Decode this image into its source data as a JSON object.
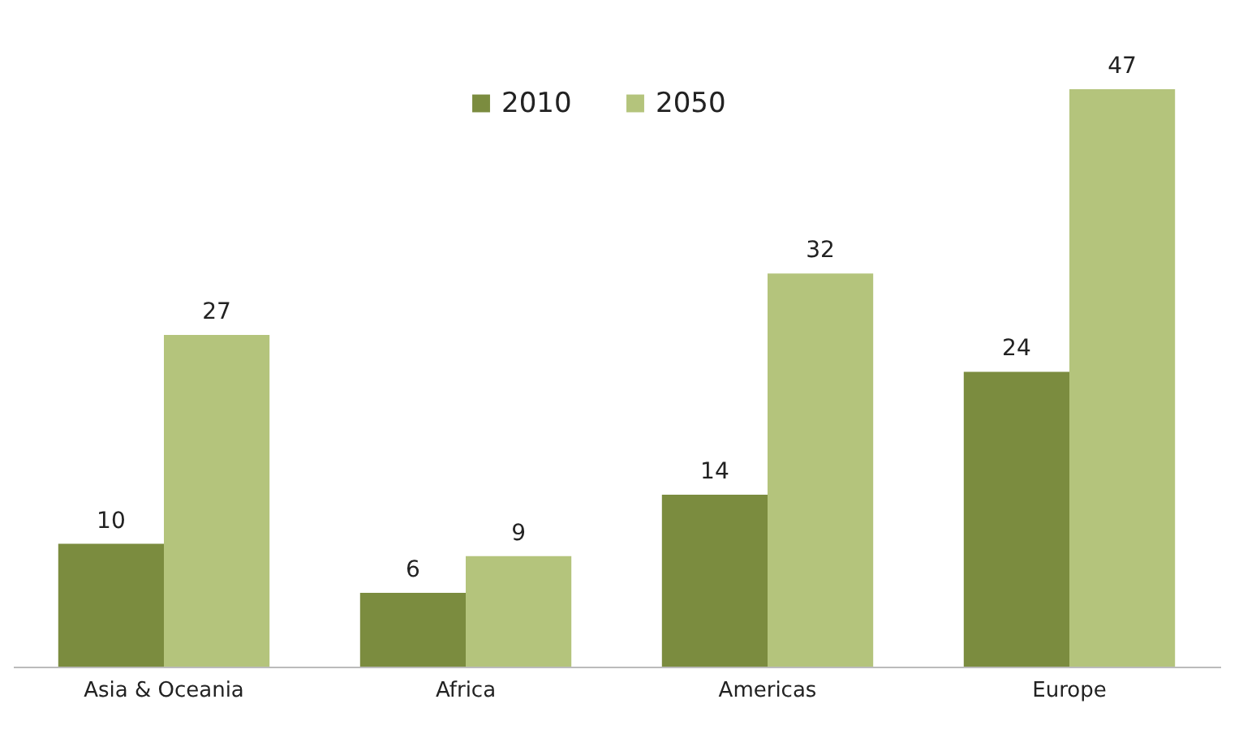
{
  "chart_data": {
    "type": "bar",
    "categories": [
      "Asia & Oceania",
      "Africa",
      "Americas",
      "Europe"
    ],
    "series": [
      {
        "name": "2010",
        "color": "#7b8c3f",
        "values": [
          10,
          6,
          14,
          24
        ]
      },
      {
        "name": "2050",
        "color": "#b4c47c",
        "values": [
          27,
          9,
          32,
          47
        ]
      }
    ],
    "data_labels": true,
    "legend": "top"
  }
}
